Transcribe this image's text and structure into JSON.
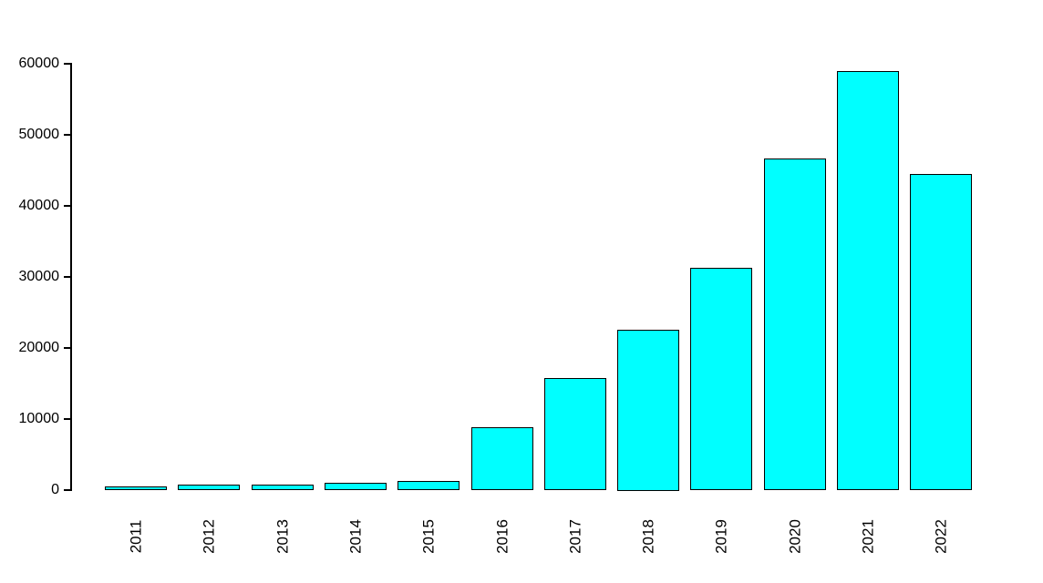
{
  "chart_data": {
    "type": "bar",
    "title": "",
    "xlabel": "",
    "ylabel": "",
    "categories": [
      "2011",
      "2012",
      "2013",
      "2014",
      "2015",
      "2016",
      "2017",
      "2018",
      "2019",
      "2020",
      "2021",
      "2022"
    ],
    "values": [
      400,
      650,
      600,
      900,
      1100,
      8700,
      15600,
      22500,
      31200,
      46500,
      58800,
      44300
    ],
    "ylim": [
      0,
      60000
    ],
    "yticks": [
      0,
      10000,
      20000,
      30000,
      40000,
      50000,
      60000
    ],
    "ytick_labels": [
      "0",
      "10000",
      "20000",
      "30000",
      "40000",
      "50000",
      "60000"
    ],
    "grid": false,
    "legend_position": "none",
    "x_label_rotation_deg": 90,
    "colors": {
      "bar_fill": "#00FFFF",
      "bar_border": "#000000",
      "axis": "#000000",
      "text": "#000000",
      "background": "#FFFFFF"
    }
  }
}
